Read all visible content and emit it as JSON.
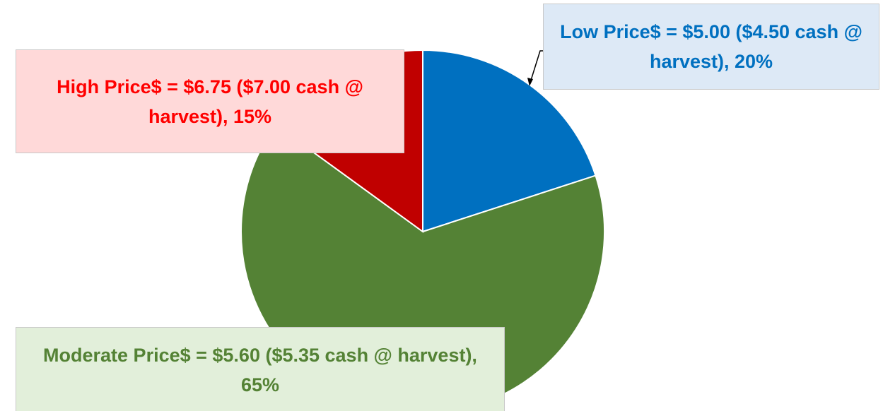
{
  "chart_data": {
    "type": "pie",
    "values": [
      20,
      65,
      15
    ],
    "value_labels": [
      "Low Price$  = $5.00 ($4.50 cash @ harvest), 20%",
      "Moderate Price$ = $5.60 ($5.35 cash @ harvest), 65%",
      "High Price$  = $6.75 ($7.00 cash @ harvest), 15%"
    ],
    "colors": [
      "#0070c0",
      "#548235",
      "#c00000"
    ],
    "label_colors": [
      "#0070c0",
      "#548235",
      "#ff0000"
    ],
    "label_fills": [
      "#dde9f6",
      "#e2efda",
      "#ffd9d9"
    ]
  }
}
